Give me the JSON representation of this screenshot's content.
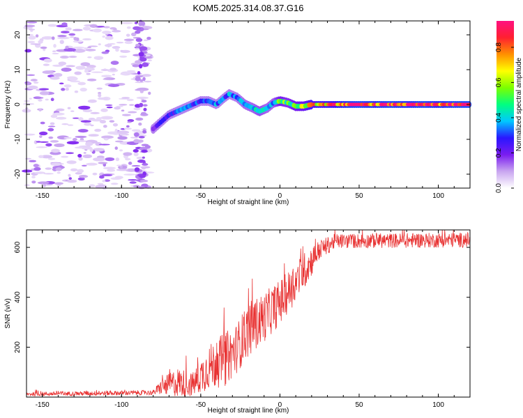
{
  "figure_title": "KOM5.2025.314.08.37.G16",
  "chart_data": [
    {
      "type": "heatmap",
      "title": "KOM5.2025.314.08.37.G16",
      "xlabel": "Height of straight line (km)",
      "ylabel": "Frequency (Hz)",
      "xlim": [
        -160,
        120
      ],
      "ylim": [
        -24,
        24
      ],
      "xticks": [
        -150,
        -100,
        -50,
        0,
        50,
        100
      ],
      "yticks": [
        -20,
        -10,
        0,
        10,
        20
      ],
      "colorbar": {
        "label": "Normalized spectral amplitude",
        "range": [
          0,
          0.95
        ],
        "ticks": [
          0,
          0.2,
          0.4,
          0.6,
          0.8
        ],
        "colors": [
          "#ffffff",
          "#c9a6f0",
          "#7a1cf0",
          "#2a16ff",
          "#00c8ff",
          "#00ff80",
          "#7bff00",
          "#ffff00",
          "#ff9000",
          "#ff2030",
          "#ff1080"
        ]
      },
      "ridge": [
        {
          "x": -80,
          "f": -7,
          "a": 0.15
        },
        {
          "x": -75,
          "f": -5,
          "a": 0.3
        },
        {
          "x": -70,
          "f": -3,
          "a": 0.25
        },
        {
          "x": -65,
          "f": -2,
          "a": 0.3
        },
        {
          "x": -60,
          "f": -1,
          "a": 0.35
        },
        {
          "x": -55,
          "f": 0,
          "a": 0.3
        },
        {
          "x": -50,
          "f": 1,
          "a": 0.3
        },
        {
          "x": -45,
          "f": 1,
          "a": 0.3
        },
        {
          "x": -40,
          "f": 0,
          "a": 0.35
        },
        {
          "x": -35,
          "f": 2,
          "a": 0.3
        },
        {
          "x": -32,
          "f": 3,
          "a": 0.35
        },
        {
          "x": -27,
          "f": 2,
          "a": 0.35
        },
        {
          "x": -22,
          "f": 0,
          "a": 0.4
        },
        {
          "x": -17,
          "f": -1,
          "a": 0.4
        },
        {
          "x": -13,
          "f": -2,
          "a": 0.45
        },
        {
          "x": -8,
          "f": -1,
          "a": 0.4
        },
        {
          "x": -4,
          "f": 0.5,
          "a": 0.4
        },
        {
          "x": 0,
          "f": 1,
          "a": 0.55
        },
        {
          "x": 5,
          "f": 0.5,
          "a": 0.5
        },
        {
          "x": 10,
          "f": -0.5,
          "a": 0.55
        },
        {
          "x": 15,
          "f": -0.5,
          "a": 0.6
        },
        {
          "x": 20,
          "f": 0,
          "a": 0.7
        },
        {
          "x": 30,
          "f": 0,
          "a": 0.75
        },
        {
          "x": 40,
          "f": 0,
          "a": 0.85
        },
        {
          "x": 50,
          "f": 0,
          "a": 0.9
        },
        {
          "x": 60,
          "f": 0,
          "a": 0.85
        },
        {
          "x": 70,
          "f": 0,
          "a": 0.9
        },
        {
          "x": 80,
          "f": 0,
          "a": 0.85
        },
        {
          "x": 90,
          "f": 0,
          "a": 0.9
        },
        {
          "x": 100,
          "f": 0,
          "a": 0.85
        },
        {
          "x": 110,
          "f": 0,
          "a": 0.9
        },
        {
          "x": 120,
          "f": 0,
          "a": 0.9
        }
      ],
      "noise_region_x": [
        -160,
        -82
      ]
    },
    {
      "type": "line",
      "xlabel": "Height of straight line (km)",
      "ylabel": "SNR (v/v)",
      "xlim": [
        -160,
        120
      ],
      "ylim": [
        0,
        670
      ],
      "xticks": [
        -150,
        -100,
        -50,
        0,
        50,
        100
      ],
      "yticks": [
        200,
        400,
        600
      ],
      "line_color": "#e83030",
      "envelope": [
        {
          "x": -160,
          "mean": 12,
          "spread": 8
        },
        {
          "x": -80,
          "mean": 18,
          "spread": 10
        },
        {
          "x": -75,
          "mean": 40,
          "spread": 30
        },
        {
          "x": -65,
          "mean": 60,
          "spread": 60
        },
        {
          "x": -55,
          "mean": 50,
          "spread": 50
        },
        {
          "x": -45,
          "mean": 120,
          "spread": 90
        },
        {
          "x": -35,
          "mean": 150,
          "spread": 110
        },
        {
          "x": -28,
          "mean": 190,
          "spread": 100
        },
        {
          "x": -20,
          "mean": 270,
          "spread": 110
        },
        {
          "x": -10,
          "mean": 320,
          "spread": 100
        },
        {
          "x": 0,
          "mean": 380,
          "spread": 90
        },
        {
          "x": 10,
          "mean": 460,
          "spread": 80
        },
        {
          "x": 18,
          "mean": 530,
          "spread": 70
        },
        {
          "x": 25,
          "mean": 590,
          "spread": 40
        },
        {
          "x": 35,
          "mean": 625,
          "spread": 30
        },
        {
          "x": 120,
          "mean": 630,
          "spread": 30
        }
      ]
    }
  ]
}
